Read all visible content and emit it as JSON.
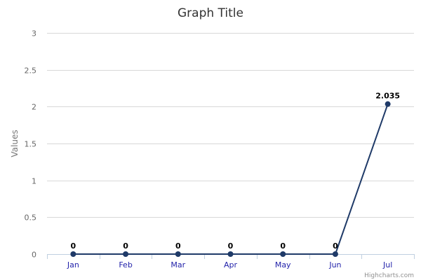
{
  "chart_data": {
    "type": "line",
    "title": "Graph Title",
    "xlabel": "",
    "ylabel": "Values",
    "categories": [
      "Jan",
      "Feb",
      "Mar",
      "Apr",
      "May",
      "Jun",
      "Jul"
    ],
    "series": [
      {
        "values": [
          0,
          0,
          0,
          0,
          0,
          0,
          2.035
        ],
        "color": "#1f3a68"
      }
    ],
    "data_labels": [
      "0",
      "0",
      "0",
      "0",
      "0",
      "0",
      "2.035"
    ],
    "ylim": [
      0,
      3
    ],
    "y_ticks": [
      0,
      0.5,
      1,
      1.5,
      2,
      2.5,
      3
    ],
    "y_tick_labels": [
      "0",
      "0.5",
      "1",
      "1.5",
      "2",
      "2.5",
      "3"
    ],
    "grid": true,
    "legend": "none",
    "credits": "Highcharts.com",
    "colors": {
      "gridline": "#d8d8d8",
      "axis": "#c0d0e0",
      "x_label": "#2222aa",
      "line": "#1f3a68"
    }
  }
}
